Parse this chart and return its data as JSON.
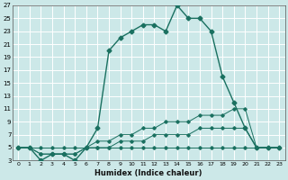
{
  "xlabel": "Humidex (Indice chaleur)",
  "xlim": [
    -0.5,
    23.5
  ],
  "ylim": [
    3,
    27
  ],
  "xticks": [
    0,
    1,
    2,
    3,
    4,
    5,
    6,
    7,
    8,
    9,
    10,
    11,
    12,
    13,
    14,
    15,
    16,
    17,
    18,
    19,
    20,
    21,
    22,
    23
  ],
  "yticks": [
    3,
    5,
    7,
    9,
    11,
    13,
    15,
    17,
    19,
    21,
    23,
    25,
    27
  ],
  "bg_color": "#cce8e8",
  "grid_color": "#b0d8d8",
  "line_color": "#1a7060",
  "main_line": {
    "x": [
      0,
      1,
      2,
      3,
      4,
      5,
      6,
      7,
      8,
      9,
      10,
      11,
      12,
      13,
      14,
      15,
      16,
      17,
      18,
      19,
      20,
      21,
      22,
      23
    ],
    "y": [
      5,
      5,
      3,
      4,
      4,
      3,
      5,
      8,
      20,
      22,
      23,
      24,
      24,
      23,
      27,
      25,
      25,
      23,
      16,
      12,
      8,
      5,
      5,
      5
    ]
  },
  "flat_lines": [
    {
      "x": [
        0,
        1,
        2,
        3,
        4,
        5,
        6,
        7,
        8,
        9,
        10,
        11,
        12,
        13,
        14,
        15,
        16,
        17,
        18,
        19,
        20,
        21,
        22,
        23
      ],
      "y": [
        5,
        5,
        5,
        5,
        5,
        5,
        5,
        5,
        5,
        5,
        5,
        5,
        5,
        5,
        5,
        5,
        5,
        5,
        5,
        5,
        5,
        5,
        5,
        5
      ]
    },
    {
      "x": [
        0,
        1,
        2,
        3,
        4,
        5,
        6,
        7,
        8,
        9,
        10,
        11,
        12,
        13,
        14,
        15,
        16,
        17,
        18,
        19,
        20,
        21,
        22,
        23
      ],
      "y": [
        5,
        5,
        4,
        4,
        4,
        4,
        5,
        5,
        5,
        6,
        6,
        6,
        7,
        7,
        7,
        7,
        8,
        8,
        8,
        8,
        8,
        5,
        5,
        5
      ]
    },
    {
      "x": [
        0,
        1,
        2,
        3,
        4,
        5,
        6,
        7,
        8,
        9,
        10,
        11,
        12,
        13,
        14,
        15,
        16,
        17,
        18,
        19,
        20,
        21,
        22,
        23
      ],
      "y": [
        5,
        5,
        4,
        4,
        4,
        4,
        5,
        6,
        6,
        7,
        7,
        8,
        8,
        9,
        9,
        9,
        10,
        10,
        10,
        11,
        11,
        5,
        5,
        5
      ]
    }
  ]
}
